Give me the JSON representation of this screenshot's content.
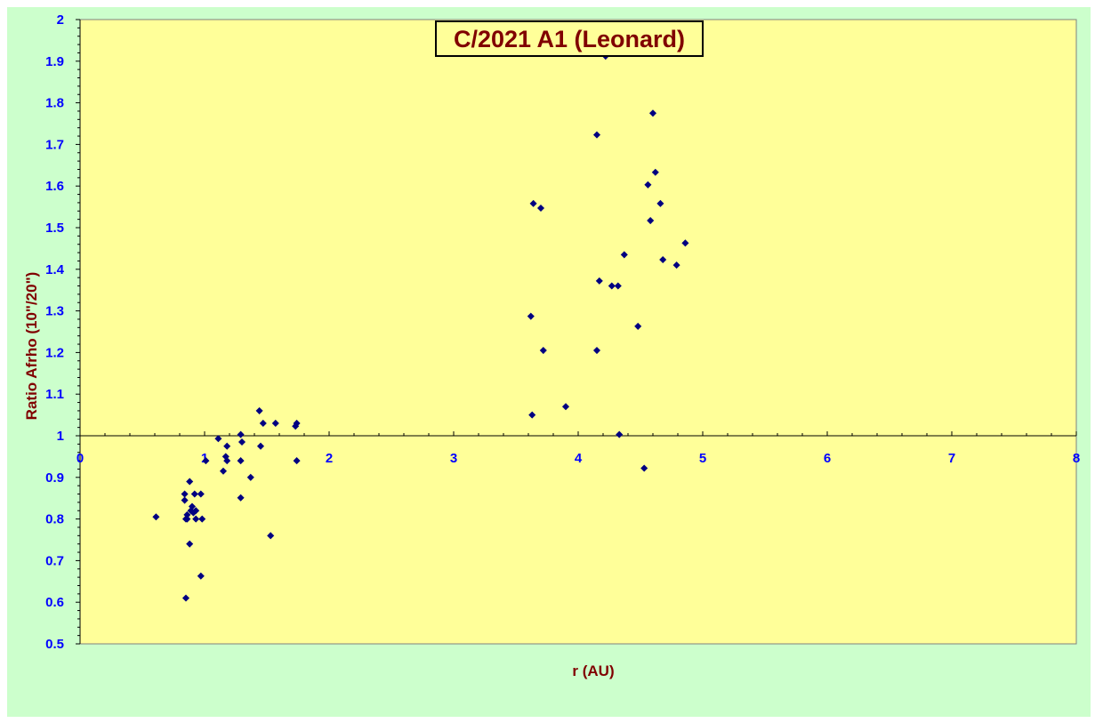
{
  "chart_data": {
    "type": "scatter",
    "title": "C/2021 A1 (Leonard)",
    "xlabel": "r (AU)",
    "ylabel": "Ratio Afrho (10\"/20\")",
    "xlim": [
      0,
      8
    ],
    "ylim": [
      0.5,
      2
    ],
    "x_ticks": [
      0,
      1,
      2,
      3,
      4,
      5,
      6,
      7,
      8
    ],
    "y_ticks": [
      0.5,
      0.6,
      0.7,
      0.8,
      0.9,
      1,
      1.1,
      1.2,
      1.3,
      1.4,
      1.5,
      1.6,
      1.7,
      1.8,
      1.9,
      2
    ],
    "x_axis_crosses_y": 1,
    "grid": false,
    "legend": "none",
    "colors": {
      "outer_background": "#ccffcc",
      "plot_background": "#ffff99",
      "title_text": "#800000",
      "axis_title_text": "#800000",
      "tick_text": "#0000ff",
      "marker": "#000080"
    },
    "series": [
      {
        "marker": "diamond",
        "points": [
          [
            0.61,
            0.805
          ],
          [
            0.84,
            0.86
          ],
          [
            0.84,
            0.845
          ],
          [
            0.85,
            0.8
          ],
          [
            0.86,
            0.81
          ],
          [
            0.86,
            0.8
          ],
          [
            0.88,
            0.89
          ],
          [
            0.88,
            0.74
          ],
          [
            0.89,
            0.82
          ],
          [
            0.9,
            0.83
          ],
          [
            0.91,
            0.815
          ],
          [
            0.92,
            0.86
          ],
          [
            0.93,
            0.82
          ],
          [
            0.93,
            0.8
          ],
          [
            0.97,
            0.86
          ],
          [
            0.98,
            0.8
          ],
          [
            1.01,
            0.94
          ],
          [
            0.97,
            0.663
          ],
          [
            0.85,
            0.61
          ],
          [
            1.11,
            0.993
          ],
          [
            1.15,
            0.915
          ],
          [
            1.17,
            0.95
          ],
          [
            1.18,
            0.975
          ],
          [
            1.18,
            0.94
          ],
          [
            1.29,
            1.003
          ],
          [
            1.3,
            0.985
          ],
          [
            1.29,
            0.94
          ],
          [
            1.29,
            0.851
          ],
          [
            1.37,
            0.9
          ],
          [
            1.44,
            1.06
          ],
          [
            1.45,
            0.975
          ],
          [
            1.47,
            1.03
          ],
          [
            1.53,
            0.76
          ],
          [
            1.57,
            1.03
          ],
          [
            1.73,
            1.023
          ],
          [
            1.74,
            1.03
          ],
          [
            1.74,
            0.94
          ],
          [
            3.62,
            1.287
          ],
          [
            3.63,
            1.05
          ],
          [
            3.64,
            1.558
          ],
          [
            3.7,
            1.547
          ],
          [
            3.72,
            1.205
          ],
          [
            3.9,
            1.07
          ],
          [
            4.15,
            1.723
          ],
          [
            4.15,
            1.205
          ],
          [
            4.17,
            1.372
          ],
          [
            4.22,
            1.912
          ],
          [
            4.27,
            1.36
          ],
          [
            4.32,
            1.36
          ],
          [
            4.33,
            1.003
          ],
          [
            4.37,
            1.435
          ],
          [
            4.48,
            1.263
          ],
          [
            4.53,
            0.922
          ],
          [
            4.56,
            1.603
          ],
          [
            4.58,
            1.517
          ],
          [
            4.6,
            1.775
          ],
          [
            4.62,
            1.633
          ],
          [
            4.66,
            1.558
          ],
          [
            4.68,
            1.423
          ],
          [
            4.79,
            1.41
          ],
          [
            4.86,
            1.463
          ]
        ]
      }
    ]
  }
}
